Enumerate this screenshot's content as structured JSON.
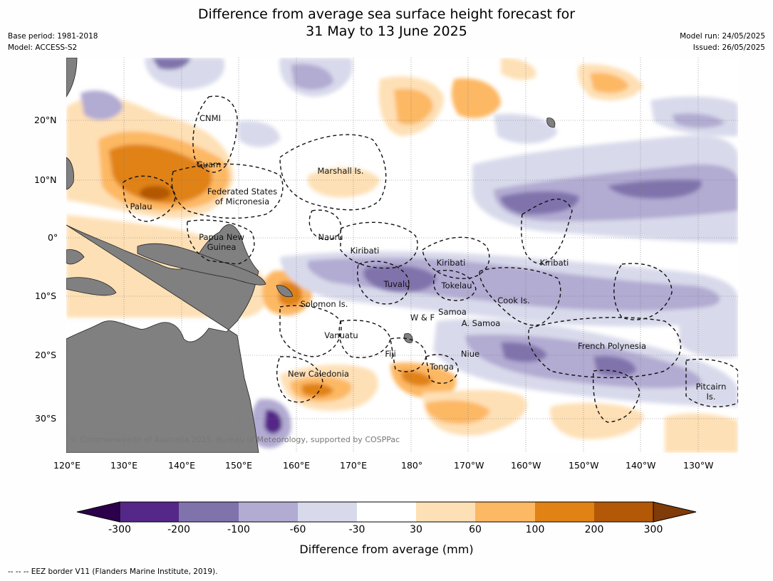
{
  "title": {
    "line1": "Difference from average sea surface height forecast for",
    "line2": "31 May to 13 June 2025"
  },
  "meta": {
    "base_period": "Base period: 1981-2018",
    "model": "Model: ACCESS-S2",
    "model_run": "Model run: 24/05/2025",
    "issued": "Issued: 26/05/2025"
  },
  "map": {
    "lon_labels": [
      "120°E",
      "130°E",
      "140°E",
      "150°E",
      "160°E",
      "170°E",
      "180°",
      "170°W",
      "160°W",
      "150°W",
      "140°W",
      "130°W"
    ],
    "lat_labels": [
      "20°N",
      "10°N",
      "0°",
      "10°S",
      "20°S",
      "30°S"
    ],
    "places": {
      "cnmi": "CNMI",
      "guam": "Guam",
      "marshall": "Marshall Is.",
      "fsm_1": "Federated States",
      "fsm_2": "of Micronesia",
      "palau": "Palau",
      "png_1": "Papua New",
      "png_2": "Guinea",
      "nauru": "Nauru",
      "kiribati_w": "Kiribati",
      "kiribati_c": "Kiribati",
      "kiribati_e": "Kiribati",
      "tuvalu": "Tuvalu",
      "tokelau": "Tokelau",
      "cook": "Cook Is.",
      "solomon": "Solomon Is.",
      "samoa": "Samoa",
      "wf": "W & F",
      "asamoa": "A. Samoa",
      "vanuatu": "Vanuatu",
      "fiji": "Fiji",
      "niue": "Niue",
      "tonga": "Tonga",
      "newcal": "New Caledonia",
      "frpoly": "French Polynesia",
      "pitcairn_1": "Pitcairn",
      "pitcairn_2": "Is."
    },
    "credit": "© Commonwealth of Australia 2025, Bureau of Meteorology, supported by COSPPac"
  },
  "colorbar": {
    "ticks": [
      "-300",
      "-200",
      "-100",
      "-60",
      "-30",
      "30",
      "60",
      "100",
      "200",
      "300"
    ],
    "colors": [
      "#2d004b",
      "#542788",
      "#8073ac",
      "#b2abd2",
      "#d8daeb",
      "#ffffff",
      "#fee0b6",
      "#fdb863",
      "#e08214",
      "#b35806",
      "#7f3b08"
    ],
    "label": "Difference from average (mm)"
  },
  "footnote": "--  --  -- EEZ border V11 (Flanders Marine Institute, 2019)."
}
